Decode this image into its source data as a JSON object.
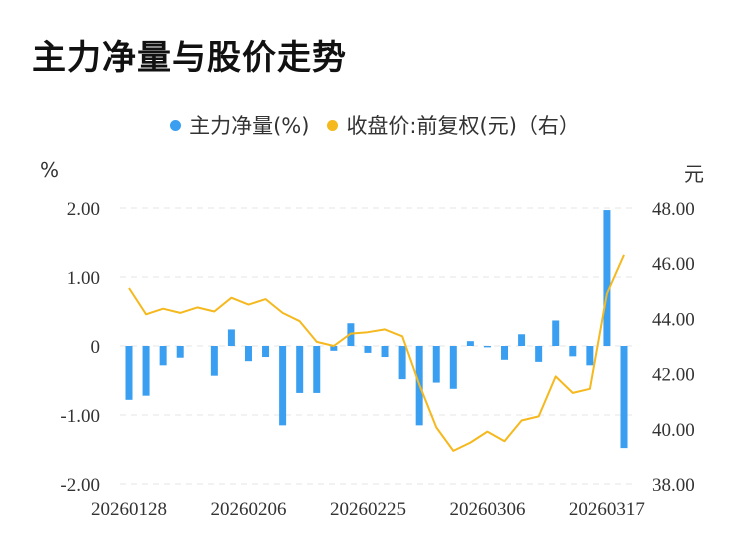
{
  "page": {
    "title": "主力净量与股价走势",
    "legend": {
      "bar_label": "主力净量(%)",
      "line_label": "收盘价:前复权(元)（右）"
    },
    "left_unit": "%",
    "right_unit": "元"
  },
  "colors": {
    "bar": "#3a9ff0",
    "line": "#f5b81d",
    "grid": "#e4e4e4"
  },
  "chart_data": {
    "type": "bar+line",
    "title": "主力净量与股价走势",
    "x_tick_labels": [
      "20260128",
      "20260206",
      "20260225",
      "20260306",
      "20260317"
    ],
    "y_left": {
      "label": "%",
      "range": [
        -2,
        2
      ],
      "ticks": [
        "2.00",
        "1.00",
        "0",
        "-1.00",
        "-2.00"
      ]
    },
    "y_right": {
      "label": "元",
      "range": [
        38,
        48
      ],
      "ticks": [
        "48.00",
        "46.00",
        "44.00",
        "42.00",
        "40.00",
        "38.00"
      ]
    },
    "grid": true,
    "legend_position": "top-center",
    "series": [
      {
        "name": "主力净量(%)",
        "type": "bar",
        "axis": "left",
        "values": [
          -0.78,
          -0.72,
          -0.28,
          -0.17,
          0.0,
          -0.43,
          0.24,
          -0.22,
          -0.16,
          -1.15,
          -0.68,
          -0.68,
          -0.07,
          0.33,
          -0.1,
          -0.16,
          -0.48,
          -1.15,
          -0.53,
          -0.62,
          0.07,
          -0.02,
          -0.2,
          0.17,
          -0.23,
          0.37,
          -0.15,
          -0.28,
          1.97,
          -1.48
        ]
      },
      {
        "name": "收盘价:前复权(元)（右）",
        "type": "line",
        "axis": "right",
        "values": [
          45.1,
          44.15,
          44.35,
          44.2,
          44.4,
          44.25,
          44.75,
          44.5,
          44.7,
          44.2,
          43.9,
          43.15,
          43.0,
          43.45,
          43.5,
          43.6,
          43.35,
          41.6,
          40.05,
          39.2,
          39.5,
          39.9,
          39.55,
          40.3,
          40.45,
          41.9,
          41.3,
          41.45,
          44.9,
          46.3
        ]
      }
    ]
  }
}
